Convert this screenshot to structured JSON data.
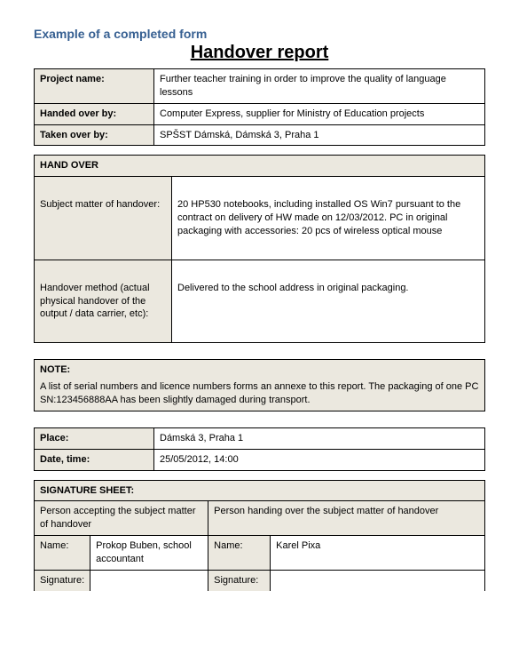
{
  "example_heading": "Example of a completed form",
  "title": "Handover report",
  "info": {
    "project_name_label": "Project name:",
    "project_name_value": "Further teacher training in order to improve the quality of language lessons",
    "handed_over_by_label": "Handed over by:",
    "handed_over_by_value": "Computer Express, supplier for Ministry of Education projects",
    "taken_over_by_label": "Taken over by:",
    "taken_over_by_value": "SPŠST Dámská, Dámská 3, Praha 1"
  },
  "handover": {
    "section_label": "HAND OVER",
    "subject_label": "Subject matter of handover:",
    "subject_value": "20 HP530 notebooks, including installed OS Win7 pursuant to the contract on delivery of HW made on 12/03/2012. PC in original packaging with accessories:  20 pcs of wireless optical mouse",
    "method_label": "Handover method (actual physical handover of the output / data carrier, etc):",
    "method_value": "Delivered to the school address in original packaging."
  },
  "note": {
    "label": "NOTE:",
    "text": "A list of serial numbers and licence numbers forms an annexe to this report. The packaging of one PC SN:123456888AA has been slightly damaged during transport."
  },
  "place_time": {
    "place_label": "Place:",
    "place_value": "Dámská 3, Praha 1",
    "date_label": "Date, time:",
    "date_value": "25/05/2012, 14:00"
  },
  "signature": {
    "section_label": "SIGNATURE SHEET:",
    "accepting_label": "Person accepting the subject matter of handover",
    "handing_label": "Person handing over the subject matter of handover",
    "name_label": "Name:",
    "accepting_name": "Prokop Buben, school accountant",
    "handing_name": "Karel Pixa",
    "signature_label": "Signature:"
  },
  "colors": {
    "heading": "#376092",
    "cell_bg": "#ebe8df",
    "border": "#000000"
  }
}
